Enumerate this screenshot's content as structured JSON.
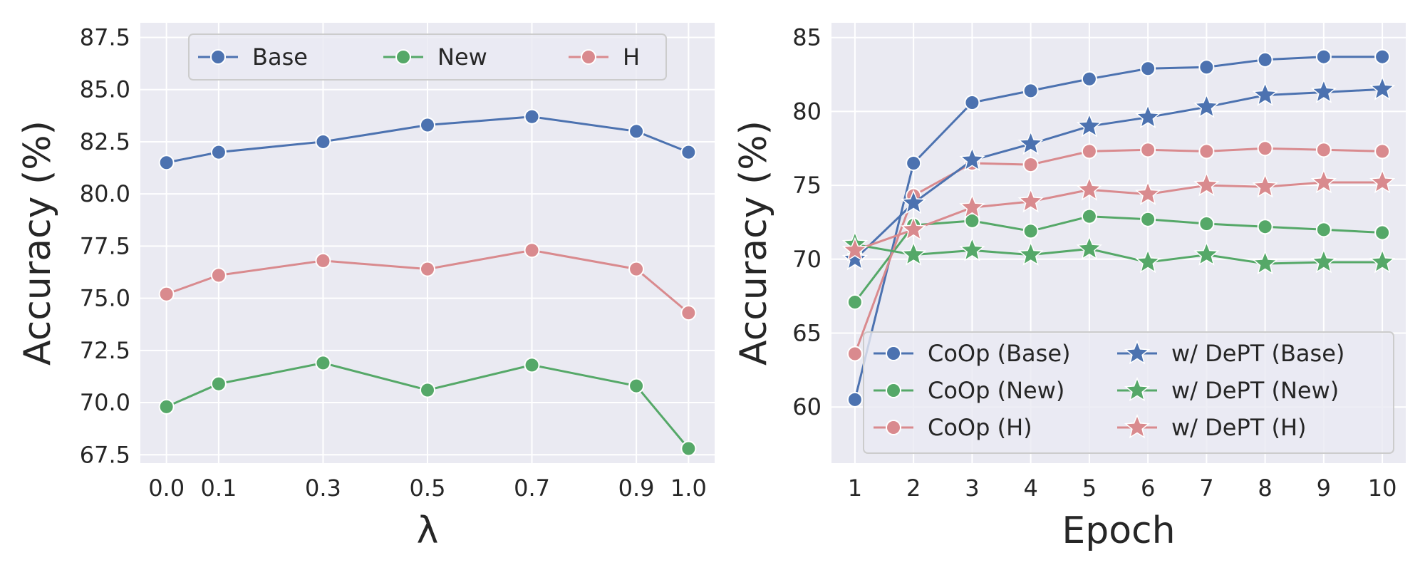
{
  "colors": {
    "blue": "#4c72b0",
    "green": "#55a868",
    "red": "#dd8452",
    "pink": "#d98a8e"
  },
  "chart_data": [
    {
      "type": "line",
      "xlabel": "λ",
      "ylabel": "Accuracy (%)",
      "x": [
        0.0,
        0.1,
        0.3,
        0.5,
        0.7,
        0.9,
        1.0
      ],
      "x_tick_labels": [
        "0.0",
        "0.1",
        "0.3",
        "0.5",
        "0.7",
        "0.9",
        "1.0"
      ],
      "xlim": [
        -0.05,
        1.05
      ],
      "ylim": [
        67.1,
        88.2
      ],
      "y_ticks": [
        67.5,
        70.0,
        72.5,
        75.0,
        77.5,
        80.0,
        82.5,
        85.0,
        87.5
      ],
      "y_tick_labels": [
        "67.5",
        "70.0",
        "72.5",
        "75.0",
        "77.5",
        "80.0",
        "82.5",
        "85.0",
        "87.5"
      ],
      "legend_placement": "upper-center",
      "series": [
        {
          "name": "Base",
          "color": "#4c72b0",
          "marker": "circle",
          "values": [
            81.5,
            82.0,
            82.5,
            83.3,
            83.7,
            83.0,
            82.0
          ]
        },
        {
          "name": "New",
          "color": "#55a868",
          "marker": "circle",
          "values": [
            69.8,
            70.9,
            71.9,
            70.6,
            71.8,
            70.8,
            67.8
          ]
        },
        {
          "name": "H",
          "color": "#d98a8e",
          "marker": "circle",
          "values": [
            75.2,
            76.1,
            76.8,
            76.4,
            77.3,
            76.4,
            74.3
          ]
        }
      ]
    },
    {
      "type": "line",
      "xlabel": "Epoch",
      "ylabel": "Accuracy (%)",
      "x": [
        1,
        2,
        3,
        4,
        5,
        6,
        7,
        8,
        9,
        10
      ],
      "x_tick_labels": [
        "1",
        "2",
        "3",
        "4",
        "5",
        "6",
        "7",
        "8",
        "9",
        "10"
      ],
      "xlim": [
        0.6,
        10.4
      ],
      "ylim": [
        56.2,
        86.0
      ],
      "y_ticks": [
        60,
        65,
        70,
        75,
        80,
        85
      ],
      "y_tick_labels": [
        "60",
        "65",
        "70",
        "75",
        "80",
        "85"
      ],
      "legend_placement": "lower-right",
      "legend_columns": 2,
      "series": [
        {
          "name": "CoOp (Base)",
          "color": "#4c72b0",
          "marker": "circle",
          "values": [
            60.5,
            76.5,
            80.6,
            81.4,
            82.2,
            82.9,
            83.0,
            83.5,
            83.7,
            83.7
          ]
        },
        {
          "name": "CoOp (New)",
          "color": "#55a868",
          "marker": "circle",
          "values": [
            67.1,
            72.3,
            72.6,
            71.9,
            72.9,
            72.7,
            72.4,
            72.2,
            72.0,
            71.8
          ]
        },
        {
          "name": "CoOp (H)",
          "color": "#d98a8e",
          "marker": "circle",
          "values": [
            63.6,
            74.3,
            76.5,
            76.4,
            77.3,
            77.4,
            77.3,
            77.5,
            77.4,
            77.3
          ]
        },
        {
          "name": "w/ DePT (Base)",
          "color": "#4c72b0",
          "marker": "star",
          "values": [
            70.0,
            73.8,
            76.7,
            77.8,
            79.0,
            79.6,
            80.3,
            81.1,
            81.3,
            81.5
          ]
        },
        {
          "name": "w/ DePT (New)",
          "color": "#55a868",
          "marker": "star",
          "values": [
            71.0,
            70.3,
            70.6,
            70.3,
            70.7,
            69.8,
            70.3,
            69.7,
            69.8,
            69.8
          ]
        },
        {
          "name": "w/ DePT (H)",
          "color": "#d98a8e",
          "marker": "star",
          "values": [
            70.6,
            72.0,
            73.5,
            73.9,
            74.7,
            74.4,
            75.0,
            74.9,
            75.2,
            75.2
          ]
        }
      ]
    }
  ]
}
